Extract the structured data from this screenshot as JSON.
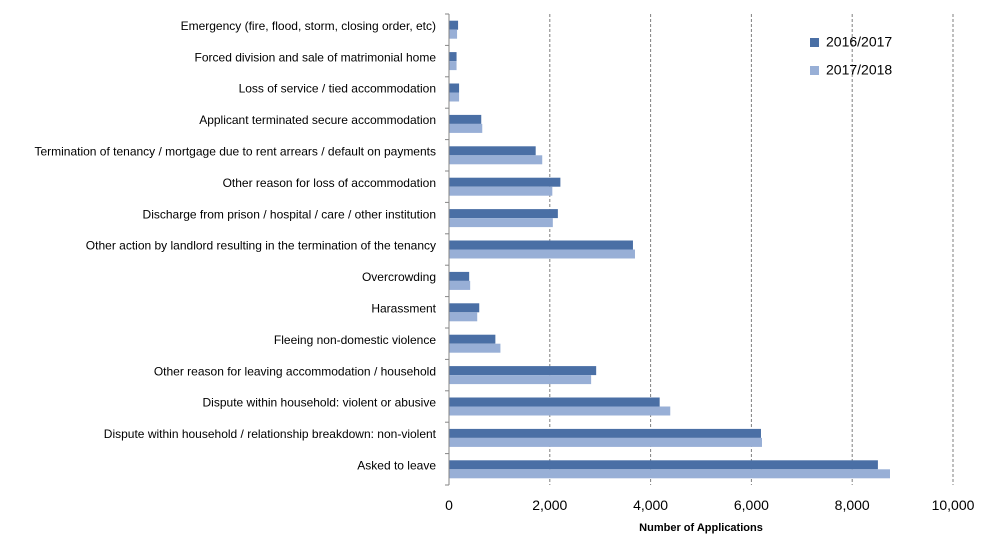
{
  "chart_data": {
    "type": "bar",
    "orientation": "horizontal",
    "categories": [
      "Emergency (fire, flood, storm, closing order, etc)",
      "Forced division and sale of matrimonial home",
      "Loss of service / tied accommodation",
      "Applicant terminated secure accommodation",
      "Termination of tenancy / mortgage due to rent arrears / default on payments",
      "Other reason for loss of accommodation",
      "Discharge from prison / hospital / care / other institution",
      "Other action by landlord resulting in the termination of the tenancy",
      "Overcrowding",
      "Harassment",
      "Fleeing non-domestic violence",
      "Other reason for leaving accommodation / household",
      "Dispute within household: violent or abusive",
      "Dispute within household / relationship breakdown: non-violent",
      "Asked to leave"
    ],
    "series": [
      {
        "name": "2016/2017",
        "color": "#4a6fa5",
        "values": [
          180,
          150,
          200,
          640,
          1720,
          2210,
          2160,
          3650,
          400,
          600,
          920,
          2920,
          4180,
          6190,
          8510
        ]
      },
      {
        "name": "2017/2018",
        "color": "#98afd6",
        "values": [
          160,
          150,
          200,
          660,
          1850,
          2050,
          2060,
          3690,
          420,
          560,
          1020,
          2820,
          4390,
          6210,
          8750
        ]
      }
    ],
    "title": "",
    "xlabel": "Number of Applications",
    "ylabel": "",
    "xlim": [
      0,
      10000
    ],
    "x_ticks": [
      0,
      2000,
      4000,
      6000,
      8000,
      10000
    ],
    "x_tick_labels": [
      "0",
      "2,000",
      "4,000",
      "6,000",
      "8,000",
      "10,000"
    ],
    "grid": "vertical dashed",
    "legend_position": "top-right"
  }
}
